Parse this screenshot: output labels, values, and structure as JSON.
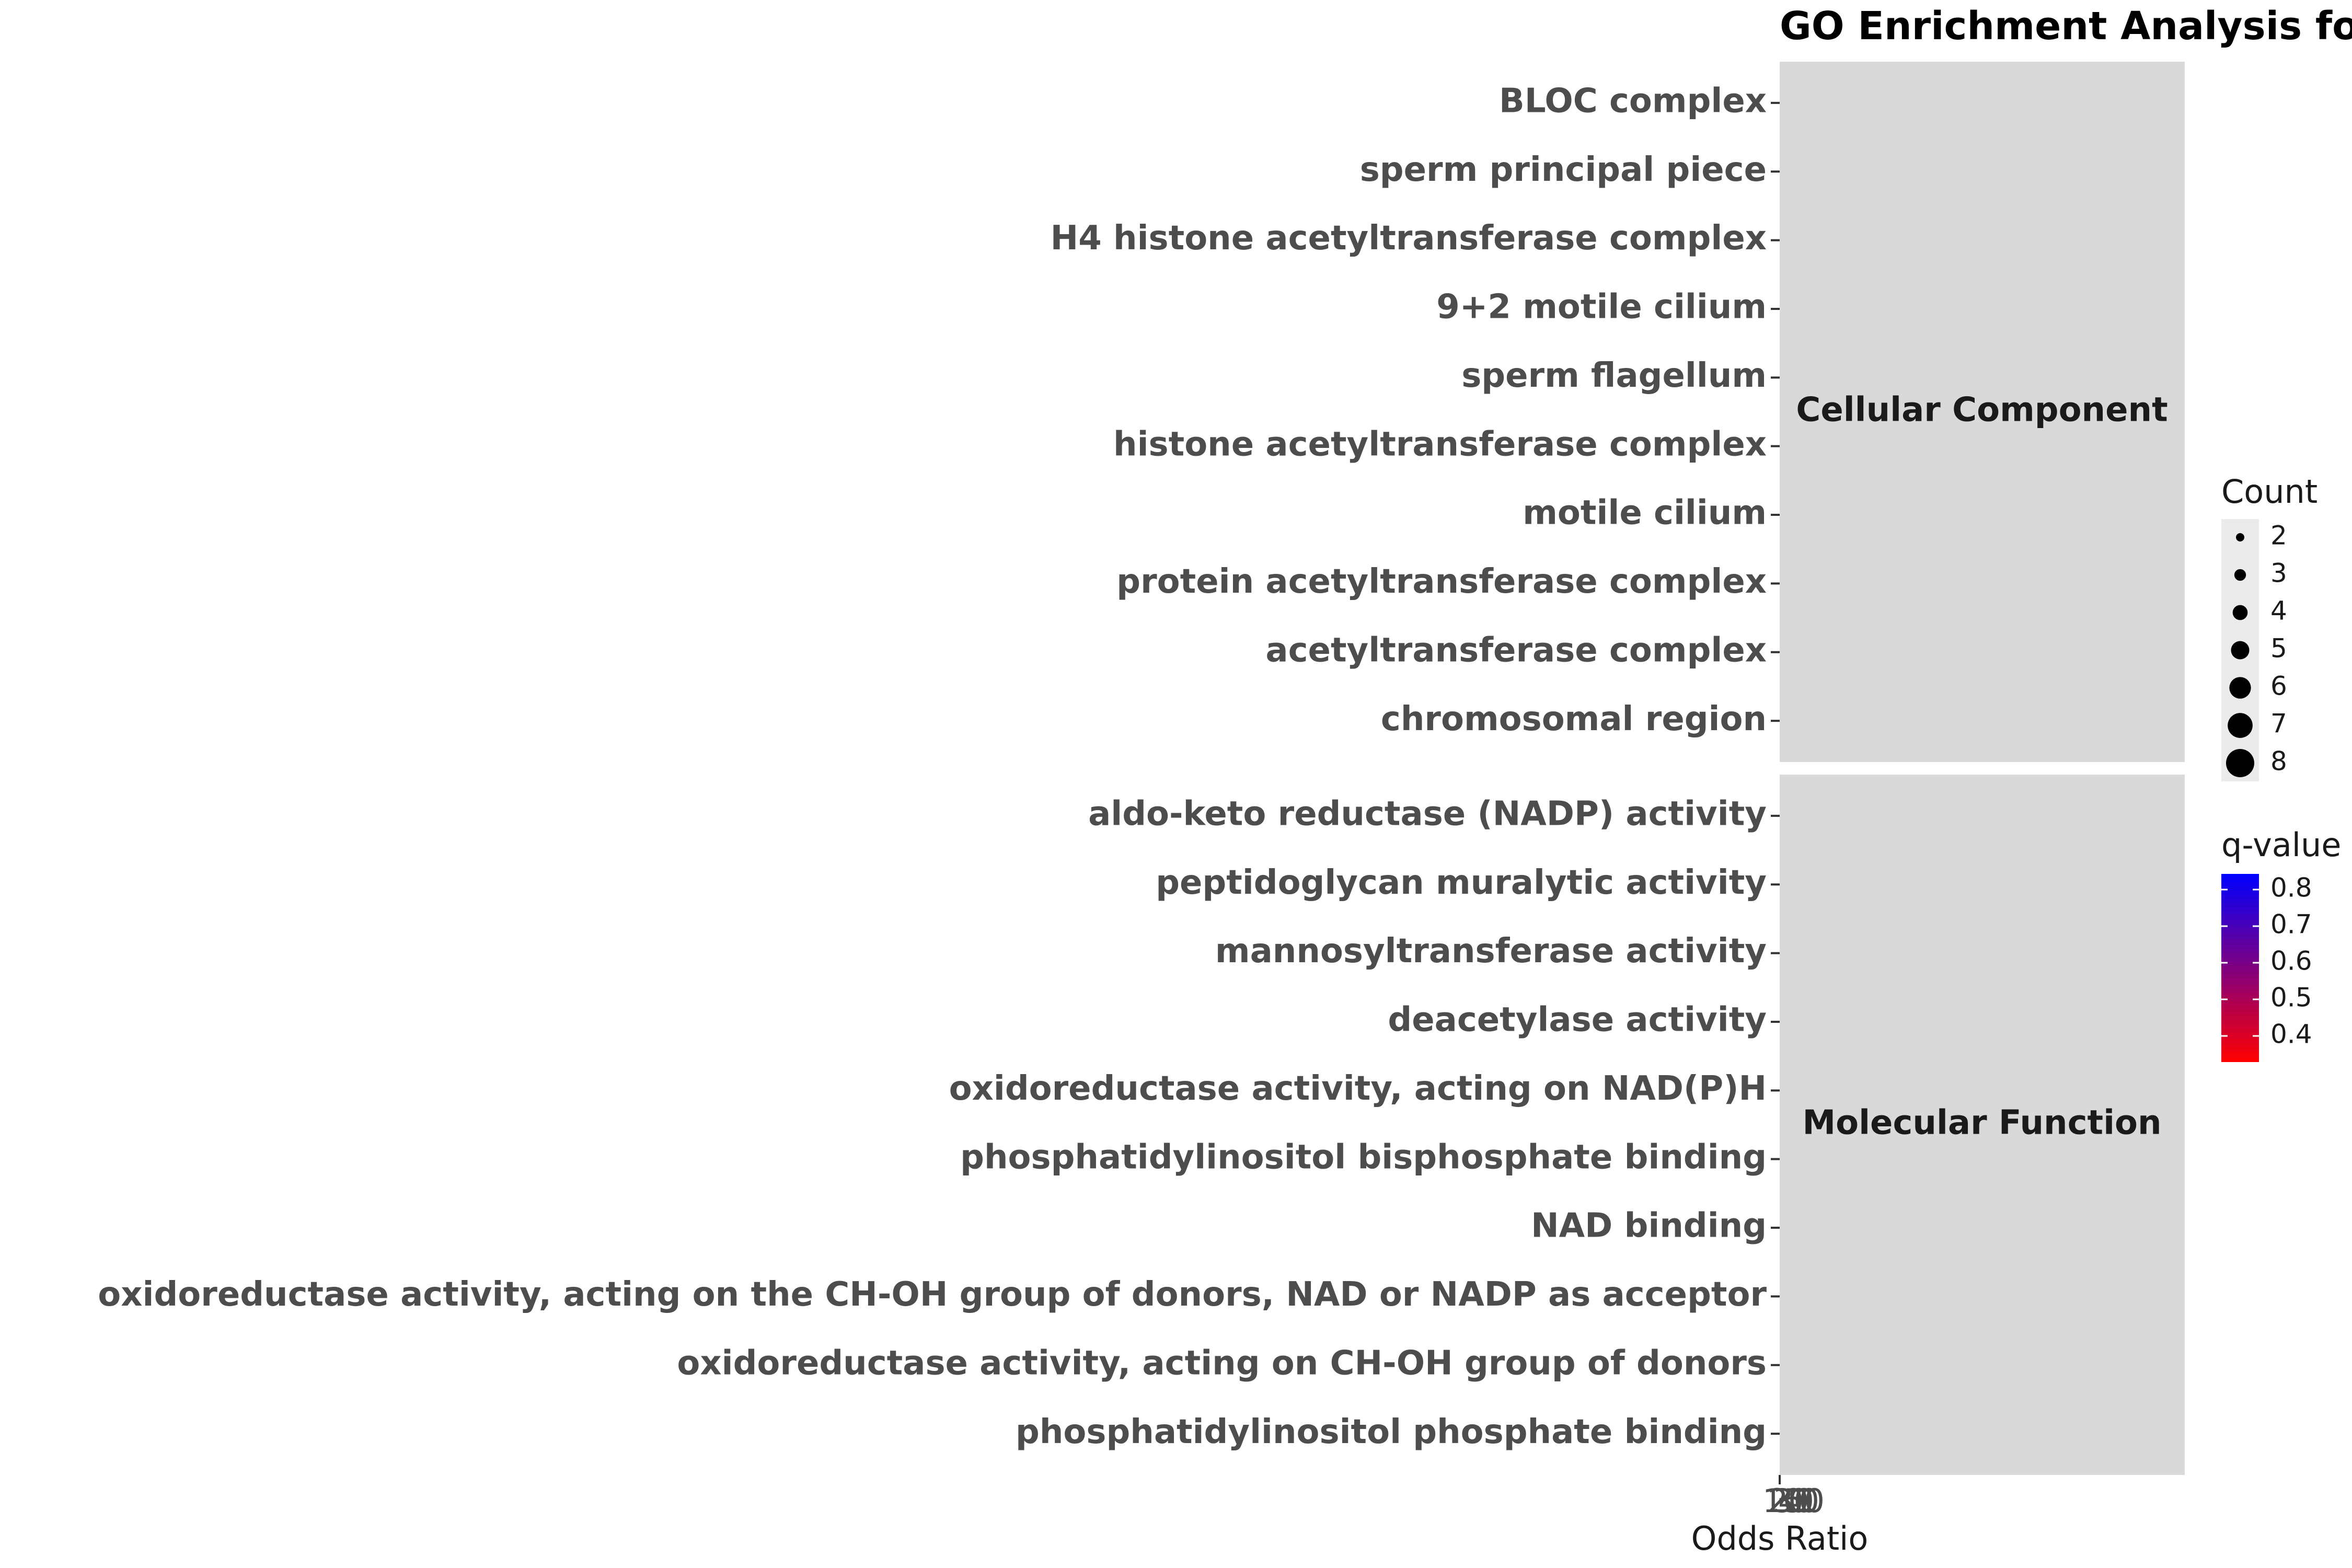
{
  "chart_data": {
    "type": "scatter",
    "title": "GO Enrichment Analysis fo",
    "xlabel": "Odds Ratio",
    "ylabel": "",
    "x_ticks": [
      "10",
      "20",
      "30",
      "40",
      "50"
    ],
    "facets": [
      {
        "name": "Cellular Component",
        "terms": [
          "BLOC complex",
          "sperm principal piece",
          "H4 histone acetyltransferase complex",
          "9+2 motile cilium",
          "sperm flagellum",
          "histone acetyltransferase complex",
          "motile cilium",
          "protein acetyltransferase complex",
          "acetyltransferase complex",
          "chromosomal region"
        ]
      },
      {
        "name": "Molecular Function",
        "terms": [
          "aldo-keto reductase (NADP) activity",
          "peptidoglycan muralytic activity",
          "mannosyltransferase activity",
          "deacetylase activity",
          "oxidoreductase activity, acting on NAD(P)H",
          "phosphatidylinositol bisphosphate binding",
          "NAD binding",
          "oxidoreductase activity, acting on the CH-OH group of donors, NAD or NADP as acceptor",
          "oxidoreductase activity, acting on CH-OH group of donors",
          "phosphatidylinositol phosphate binding"
        ]
      }
    ],
    "size_legend": {
      "title": "Count",
      "values": [
        "2",
        "3",
        "4",
        "5",
        "6",
        "7",
        "8"
      ]
    },
    "color_legend": {
      "title": "q-value",
      "ticks": [
        "0.8",
        "0.7",
        "0.6",
        "0.5",
        "0.4"
      ],
      "low_color": "#ff0000",
      "high_color": "#0000ff"
    },
    "panel_background": "#d9d9d9",
    "grid": false
  }
}
